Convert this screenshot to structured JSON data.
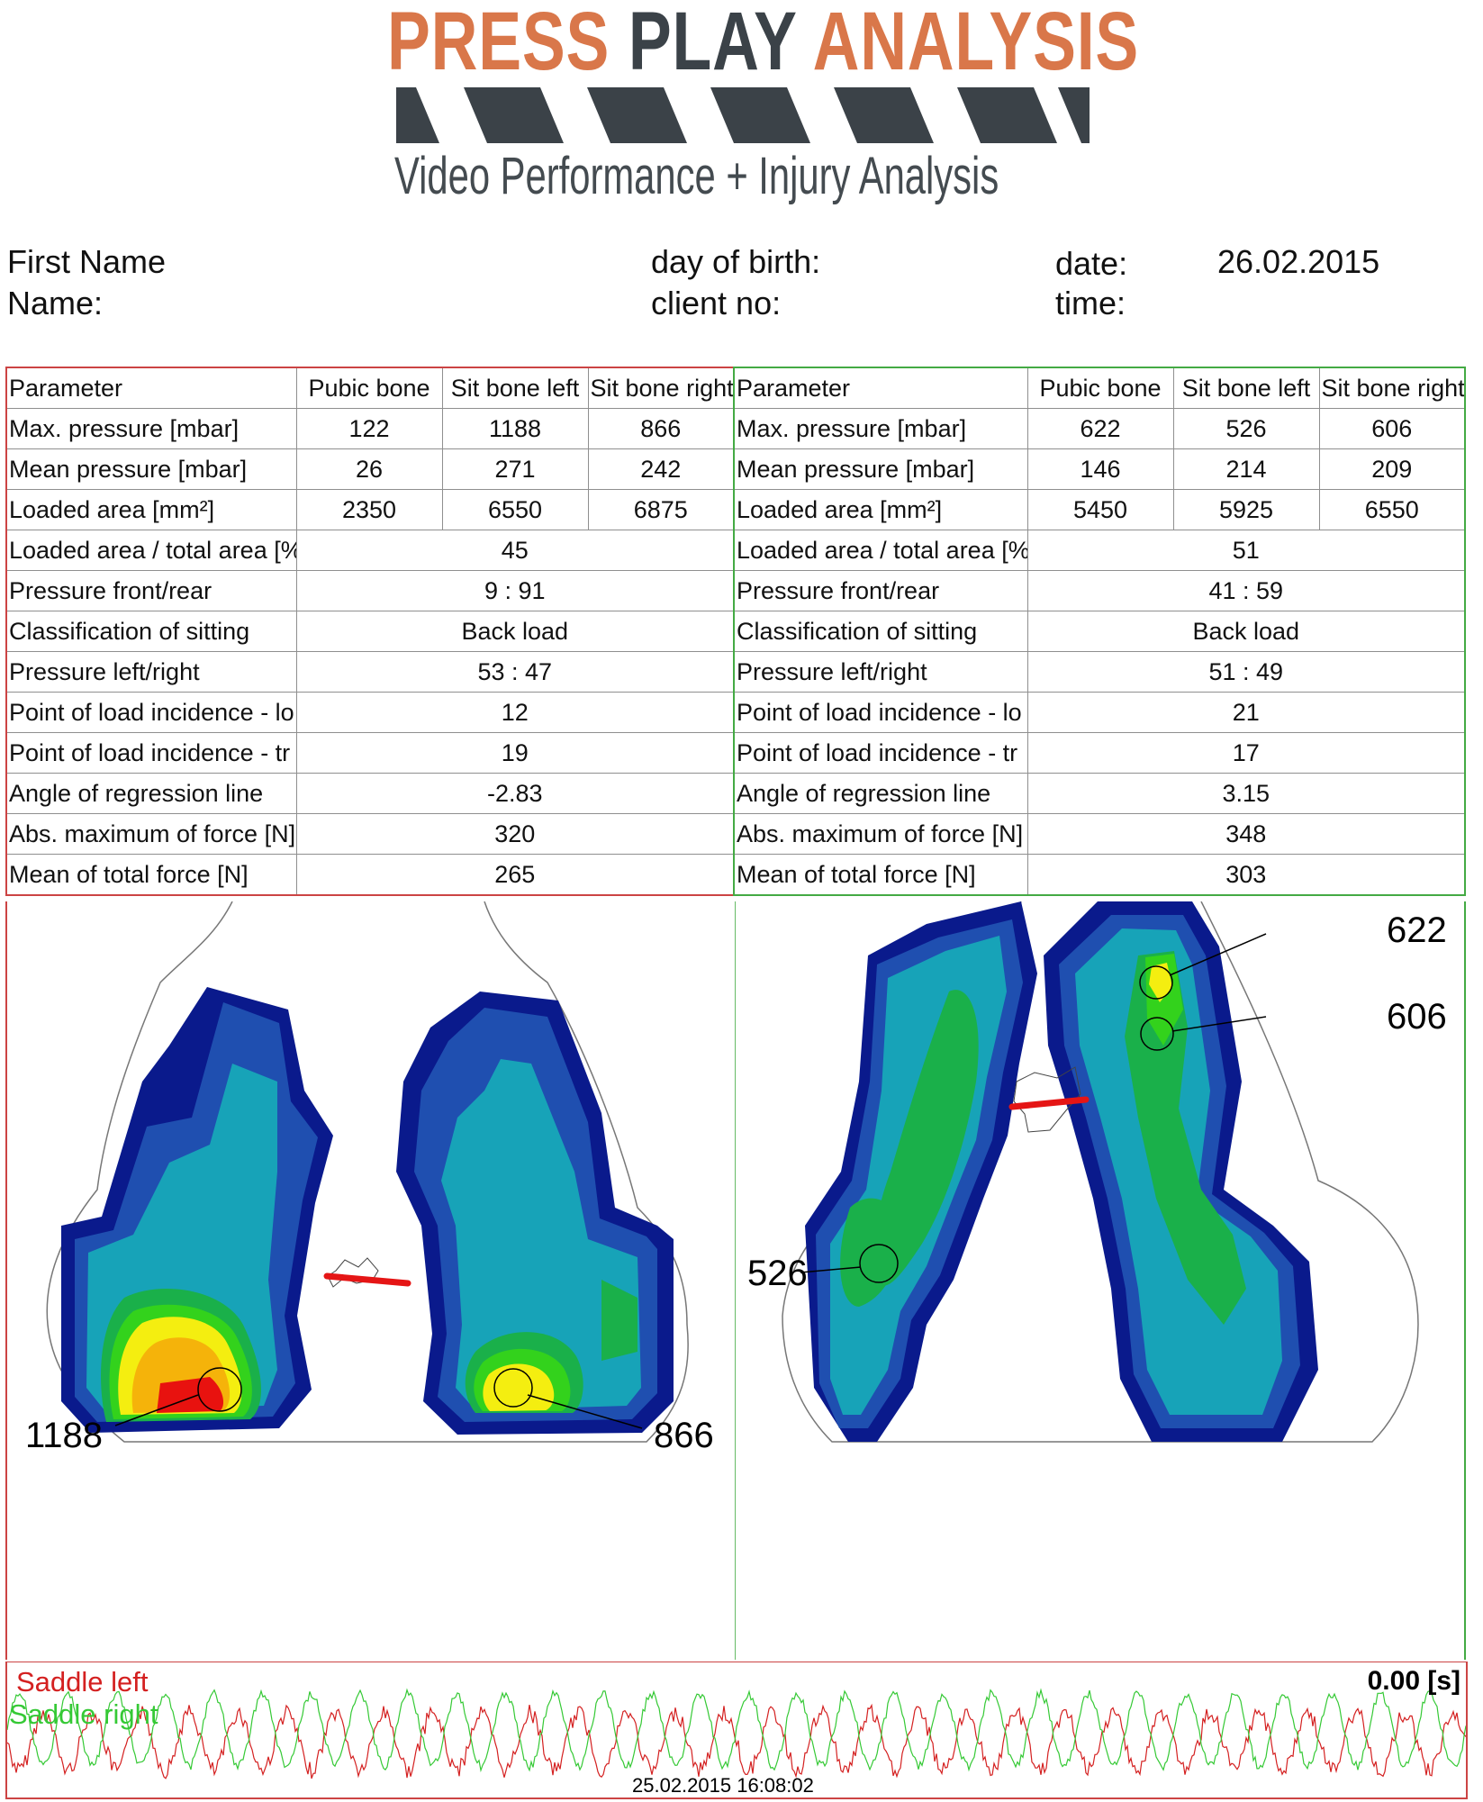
{
  "logo": {
    "word1": "PRESS",
    "word2": "PLAY",
    "word3": "ANALYSIS",
    "subtitle": "Video Performance + Injury Analysis",
    "accent": "#d9774a",
    "dark": "#3b4248"
  },
  "header": {
    "first_name_label": "First Name",
    "name_label": "Name:",
    "dob_label": "day of birth:",
    "client_label": "client no:",
    "date_label": "date:",
    "date_value": "26.02.2015",
    "time_label": "time:"
  },
  "left_table": {
    "columns": [
      "Parameter",
      "Pubic bone",
      "Sit bone left",
      "Sit bone right"
    ],
    "rows3": [
      {
        "label": "Max. pressure [mbar]",
        "values": [
          "122",
          "1188",
          "866"
        ]
      },
      {
        "label": "Mean pressure [mbar]",
        "values": [
          "26",
          "271",
          "242"
        ]
      },
      {
        "label": "Loaded area [mm²]",
        "values": [
          "2350",
          "6550",
          "6875"
        ]
      }
    ],
    "rows1": [
      {
        "label": "Loaded area / total area [%",
        "value": "45"
      },
      {
        "label": "Pressure front/rear",
        "value": "9 : 91"
      },
      {
        "label": "Classification of sitting",
        "value": "Back load"
      },
      {
        "label": "Pressure left/right",
        "value": "53 : 47"
      },
      {
        "label": "Point of load incidence -  lo",
        "value": "12"
      },
      {
        "label": "Point of load incidence -  tr",
        "value": "19"
      },
      {
        "label": "Angle of regression line",
        "value": "-2.83"
      },
      {
        "label": "Abs. maximum of force [N]",
        "value": "320"
      },
      {
        "label": "Mean of total force [N]",
        "value": "265"
      }
    ]
  },
  "right_table": {
    "columns": [
      "Parameter",
      "Pubic bone",
      "Sit bone left",
      "Sit bone right"
    ],
    "rows3": [
      {
        "label": "Max. pressure [mbar]",
        "values": [
          "622",
          "526",
          "606"
        ]
      },
      {
        "label": "Mean pressure [mbar]",
        "values": [
          "146",
          "214",
          "209"
        ]
      },
      {
        "label": "Loaded area [mm²]",
        "values": [
          "5450",
          "5925",
          "6550"
        ]
      }
    ],
    "rows1": [
      {
        "label": "Loaded area / total area [%",
        "value": "51"
      },
      {
        "label": "Pressure front/rear",
        "value": "41 : 59"
      },
      {
        "label": "Classification of sitting",
        "value": "Back load"
      },
      {
        "label": "Pressure left/right",
        "value": "51 : 49"
      },
      {
        "label": "Point of load incidence -  lo",
        "value": "21"
      },
      {
        "label": "Point of load incidence -  tr",
        "value": "17"
      },
      {
        "label": "Angle of regression line",
        "value": "3.15"
      },
      {
        "label": "Abs. maximum of force [N]",
        "value": "348"
      },
      {
        "label": "Mean of total force [N]",
        "value": "303"
      }
    ]
  },
  "maps": {
    "left_peaks": [
      "1188",
      "866"
    ],
    "right_peaks": [
      "622",
      "606",
      "526"
    ],
    "colors": {
      "dark_blue": "#0a1a8c",
      "blue": "#1f4fb0",
      "teal": "#17a3b8",
      "cyan": "#12bfc6",
      "green": "#1ab04a",
      "lime": "#33d21c",
      "yellow": "#f4ee10",
      "orange": "#f5b30a",
      "red": "#e8120f",
      "regression": "#e51515"
    }
  },
  "graph": {
    "legend_left": "Saddle left",
    "legend_right": "Saddle right",
    "left_color": "#d42020",
    "right_color": "#35c935",
    "time_readout": "0.00 [s]",
    "timestamp": "25.02.2015  16:08:02"
  }
}
